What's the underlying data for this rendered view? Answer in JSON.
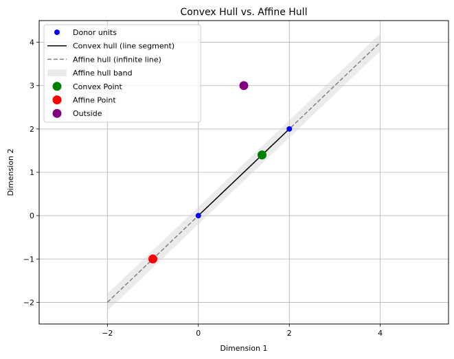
{
  "chart_data": {
    "type": "scatter",
    "title": "Convex Hull vs. Affine Hull",
    "xlabel": "Dimension 1",
    "ylabel": "Dimension 2",
    "xlim": [
      -3.5,
      5.5
    ],
    "ylim": [
      -2.5,
      4.5
    ],
    "xticks": [
      -2,
      0,
      2,
      4
    ],
    "yticks": [
      -2,
      -1,
      0,
      1,
      2,
      3,
      4
    ],
    "xtick_labels": [
      "−2",
      "0",
      "2",
      "4"
    ],
    "ytick_labels": [
      "−2",
      "−1",
      "0",
      "1",
      "2",
      "3",
      "4"
    ],
    "grid": true,
    "legend_position": "top-left",
    "series": [
      {
        "name": "Donor units",
        "kind": "scatter",
        "color": "#0000ff",
        "points": [
          [
            0,
            0
          ],
          [
            2,
            2
          ]
        ]
      },
      {
        "name": "Convex hull (line segment)",
        "kind": "line",
        "color": "#000000",
        "points": [
          [
            0,
            0
          ],
          [
            2,
            2
          ]
        ]
      },
      {
        "name": "Affine hull (infinite line)",
        "kind": "dashed-line",
        "color": "#808080",
        "points": [
          [
            -2,
            -2
          ],
          [
            4,
            4
          ]
        ]
      },
      {
        "name": "Affine hull band",
        "kind": "band",
        "color": "#d3d3d3",
        "x_range": [
          -2,
          4
        ],
        "half_width": 0.2
      },
      {
        "name": "Convex Point",
        "kind": "scatter",
        "color": "#008000",
        "points": [
          [
            1.4,
            1.4
          ]
        ]
      },
      {
        "name": "Affine Point",
        "kind": "scatter",
        "color": "#ff0000",
        "points": [
          [
            -1,
            -1
          ]
        ]
      },
      {
        "name": "Outside",
        "kind": "scatter",
        "color": "#800080",
        "points": [
          [
            1,
            3
          ]
        ]
      }
    ]
  }
}
